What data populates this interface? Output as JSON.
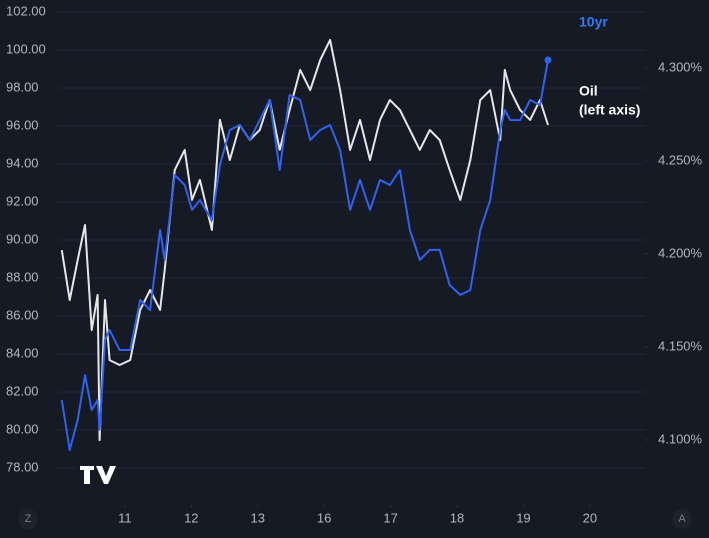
{
  "chart_data": {
    "type": "line",
    "x": [
      0.05,
      0.17,
      0.29,
      0.4,
      0.5,
      0.59,
      0.62,
      0.7,
      0.77,
      0.92,
      1.08,
      1.23,
      1.38,
      1.53,
      1.6,
      1.75,
      1.9,
      2.01,
      2.13,
      2.31,
      2.43,
      2.58,
      2.73,
      2.88,
      3.03,
      3.18,
      3.33,
      3.48,
      3.64,
      3.79,
      3.94,
      4.09,
      4.24,
      4.39,
      4.54,
      4.69,
      4.84,
      4.99,
      5.14,
      5.29,
      5.44,
      5.59,
      5.74,
      5.89,
      6.05,
      6.2,
      6.35,
      6.5,
      6.65,
      6.72,
      6.8,
      6.95,
      7.1,
      7.25,
      7.37
    ],
    "xlim": [
      -0.88,
      8.83
    ],
    "xticks": [
      {
        "value": 1,
        "label": "11"
      },
      {
        "value": 2,
        "label": "12"
      },
      {
        "value": 3,
        "label": "13"
      },
      {
        "value": 4,
        "label": "16"
      },
      {
        "value": 5,
        "label": "17"
      },
      {
        "value": 6,
        "label": "18"
      },
      {
        "value": 7,
        "label": "19"
      },
      {
        "value": 8,
        "label": "20"
      }
    ],
    "ylim": [
      76.58,
      102.63
    ],
    "yticks": [
      {
        "value": 78,
        "label": "78.00"
      },
      {
        "value": 80,
        "label": "80.00"
      },
      {
        "value": 82,
        "label": "82.00"
      },
      {
        "value": 84,
        "label": "84.00"
      },
      {
        "value": 86,
        "label": "86.00"
      },
      {
        "value": 88,
        "label": "88.00"
      },
      {
        "value": 90,
        "label": "90.00"
      },
      {
        "value": 92,
        "label": "92.00"
      },
      {
        "value": 94,
        "label": "94.00"
      },
      {
        "value": 96,
        "label": "96.00"
      },
      {
        "value": 98,
        "label": "98.00"
      },
      {
        "value": 100,
        "label": "100.00"
      },
      {
        "value": 102,
        "label": "102.00"
      }
    ],
    "y2lim": [
      4.0704,
      4.3366
    ],
    "y2ticks": [
      {
        "value": 4.1,
        "label": "4.100%"
      },
      {
        "value": 4.15,
        "label": "4.150%"
      },
      {
        "value": 4.2,
        "label": "4.200%"
      },
      {
        "value": 4.25,
        "label": "4.250%"
      },
      {
        "value": 4.3,
        "label": "4.300%"
      }
    ],
    "grid": true,
    "annotation": "(left axis)",
    "series": [
      {
        "name": "Oil",
        "color": "#e6e6e6",
        "axis": "y",
        "values": [
          89.47,
          86.84,
          88.95,
          90.79,
          85.26,
          87.11,
          79.47,
          86.84,
          83.68,
          83.42,
          83.68,
          86.32,
          87.37,
          86.32,
          88.42,
          93.68,
          94.74,
          92.11,
          93.16,
          90.53,
          96.32,
          94.21,
          96.05,
          95.26,
          95.79,
          97.37,
          94.74,
          96.84,
          98.95,
          97.89,
          99.47,
          100.53,
          97.89,
          94.74,
          96.32,
          94.21,
          96.32,
          97.37,
          96.84,
          95.79,
          94.74,
          95.79,
          95.26,
          93.68,
          92.11,
          94.21,
          97.37,
          97.89,
          95.26,
          98.95,
          97.89,
          96.84,
          96.32,
          97.37,
          96.05
        ]
      },
      {
        "name": "10yr",
        "color": "#2f62f0",
        "axis": "y2",
        "values": [
          4.1215,
          4.0946,
          4.1108,
          4.1349,
          4.1161,
          4.1215,
          4.1054,
          4.1538,
          4.1591,
          4.1484,
          4.1484,
          4.1753,
          4.1699,
          4.2129,
          4.1968,
          4.2425,
          4.2371,
          4.2237,
          4.229,
          4.2183,
          4.2478,
          4.2667,
          4.2694,
          4.2613,
          4.272,
          4.2828,
          4.2452,
          4.2855,
          4.2828,
          4.2613,
          4.2667,
          4.2694,
          4.2559,
          4.2237,
          4.2398,
          4.2237,
          4.2398,
          4.2371,
          4.2452,
          4.2129,
          4.1968,
          4.2022,
          4.2022,
          4.1833,
          4.178,
          4.1806,
          4.2129,
          4.229,
          4.2667,
          4.2774,
          4.272,
          4.272,
          4.2828,
          4.2801,
          4.3043
        ]
      }
    ]
  },
  "ui": {
    "buttons": [
      "Z",
      "A"
    ]
  }
}
